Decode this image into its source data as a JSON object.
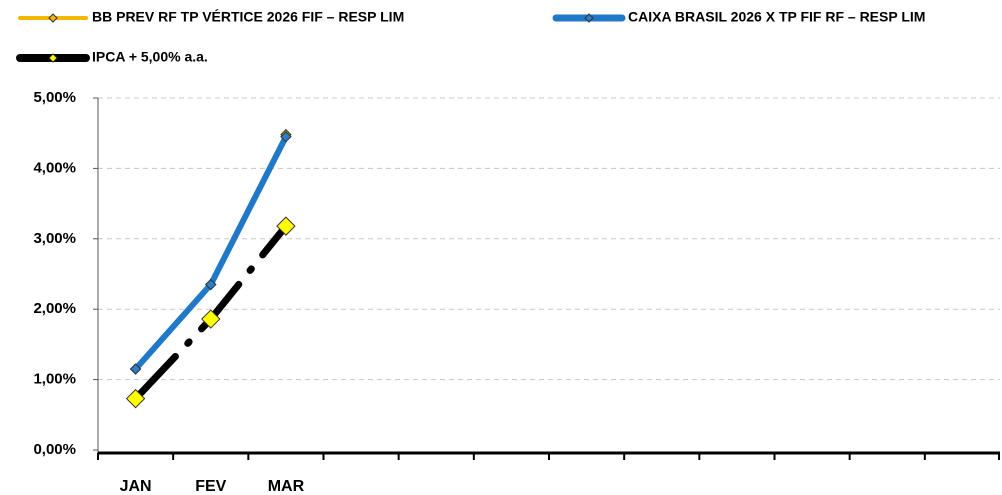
{
  "chart_data": {
    "type": "line",
    "categories": [
      "JAN",
      "FEV",
      "MAR",
      null,
      null,
      null,
      null,
      null,
      null,
      null,
      null,
      null
    ],
    "series": [
      {
        "name": "BB PREV RF TP VÉRTICE 2026 FIF – RESP LIM",
        "color": "#f2b800",
        "marker_color": "#f2b800",
        "values": [
          1.15,
          2.35,
          4.48,
          null,
          null,
          null,
          null,
          null,
          null,
          null,
          null,
          null
        ]
      },
      {
        "name": "CAIXA BRASIL 2026 X TP FIF RF – RESP LIM",
        "color": "#1f78c8",
        "marker_color": "#2a7fc9",
        "values": [
          1.15,
          2.35,
          4.45,
          null,
          null,
          null,
          null,
          null,
          null,
          null,
          null,
          null
        ]
      },
      {
        "name": "IPCA + 5,00% a.a.",
        "color": "#000000",
        "marker_color": "#ffff00",
        "values": [
          0.73,
          1.86,
          3.18,
          null,
          null,
          null,
          null,
          null,
          null,
          null,
          null,
          null
        ]
      }
    ],
    "ylim": [
      0,
      5
    ],
    "yticks": [
      {
        "value": 0,
        "label": "0,00%"
      },
      {
        "value": 1,
        "label": "1,00%"
      },
      {
        "value": 2,
        "label": "2,00%"
      },
      {
        "value": 3,
        "label": "3,00%"
      },
      {
        "value": 4,
        "label": "4,00%"
      },
      {
        "value": 5,
        "label": "5,00%"
      }
    ],
    "grid": true,
    "legend": "top"
  }
}
